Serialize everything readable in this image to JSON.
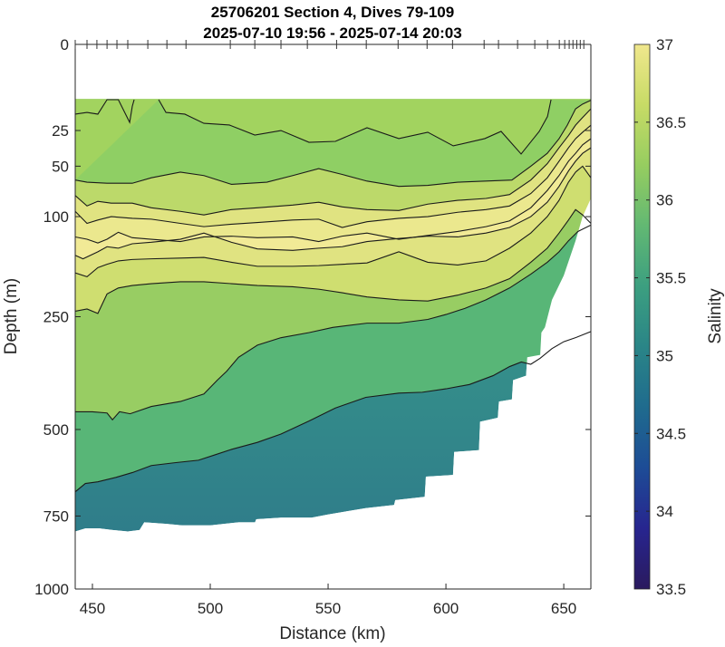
{
  "chart_data": {
    "type": "heatmap",
    "subtype": "filled-contour-section",
    "title": "25706201 Section 4, Dives 79-109",
    "subtitle": "2025-07-10 19:56 - 2025-07-14 20:03",
    "xlabel": "Distance (km)",
    "ylabel": "Depth (m)",
    "xlim": [
      442.7,
      661.5
    ],
    "ylim": [
      0,
      1000
    ],
    "y_scale": "sqrt",
    "y_reversed": true,
    "xticks": [
      450,
      500,
      550,
      600,
      650
    ],
    "xtick_labels": [
      "450",
      "500",
      "550",
      "600",
      "650"
    ],
    "yticks": [
      0,
      25,
      50,
      100,
      250,
      500,
      750,
      1000
    ],
    "ytick_labels": [
      "0",
      "25",
      "50",
      "100",
      "250",
      "500",
      "750",
      "1000"
    ],
    "colorbar": {
      "label": "Salinity",
      "clim": [
        33.5,
        37
      ],
      "ticks": [
        37,
        36.5,
        36,
        35.5,
        35,
        34.5,
        34,
        33.5
      ],
      "tick_labels": [
        "37",
        "36.5",
        "36",
        "35.5",
        "35",
        "34.5",
        "34",
        "33.5"
      ],
      "colormap": [
        "#2a1a5e",
        "#27258f",
        "#1d4c96",
        "#1f6b8e",
        "#2a8587",
        "#3c9f80",
        "#62b873",
        "#96cd60",
        "#c7db66",
        "#f0e78d"
      ]
    },
    "dive_markers_km": [
      442.7,
      447.7,
      451.9,
      456.2,
      460.4,
      465.0,
      473.5,
      481.6,
      489.7,
      508.5,
      518.9,
      530.0,
      541.2,
      553.6,
      566.2,
      579.7,
      592.0,
      602.8,
      616.2,
      622.3,
      630.4,
      637.7,
      643.1,
      648.1,
      650.4,
      652.3,
      653.9,
      655.5,
      657.0,
      658.5
    ],
    "data_top_depth": 10,
    "bottom_boundary": {
      "distance": [
        442.7,
        447.0,
        453.0,
        458.5,
        465.0,
        470.0,
        472.0,
        481.5,
        488.0,
        500.0,
        512.0,
        519.0,
        519.5,
        530.0,
        543.0,
        550.0,
        566.0,
        578.0,
        578.5,
        591.0,
        591.5,
        603.0,
        603.5,
        614.0,
        614.5,
        622.0,
        622.5,
        628.0,
        628.5,
        634.0,
        634.5,
        640.0,
        640.5,
        642.0,
        645.0,
        650.0,
        655.0,
        658.0,
        661.5
      ],
      "depth": [
        800,
        790,
        790,
        795,
        800,
        795,
        770,
        775,
        780,
        780,
        770,
        770,
        760,
        755,
        755,
        745,
        725,
        715,
        700,
        690,
        630,
        625,
        560,
        555,
        480,
        470,
        430,
        425,
        380,
        370,
        330,
        325,
        280,
        270,
        220,
        180,
        130,
        100,
        80
      ]
    },
    "bands": [
      {
        "level": 36.6,
        "color": "#9fd462"
      },
      {
        "level": 36.7,
        "color": "#c2dc69"
      },
      {
        "level": 36.8,
        "color": "#d9e37a"
      },
      {
        "level": 36.9,
        "color": "#e8e888"
      },
      {
        "level": 36.5,
        "color": "#a9d562"
      },
      {
        "level": 36.2,
        "color": "#74c66a"
      },
      {
        "level": 35.8,
        "color": "#47ad7e"
      },
      {
        "level": 35.4,
        "color": "#338f84"
      }
    ],
    "contours": [
      {
        "level": 36.5,
        "distance": [
          442.7,
          447.7,
          452.3,
          456.2,
          461.0,
          465.8,
          466.9,
          467.7
        ],
        "depth": [
          16.4,
          15.6,
          16.4,
          10.3,
          10.3,
          20.5,
          13.0,
          10.3
        ]
      },
      {
        "level": 36.5,
        "distance": [
          478.1,
          481.2,
          489.2,
          497.3,
          508.1,
          518.9,
          530.0,
          541.9,
          553.1,
          566.5,
          580.0,
          592.3,
          603.1,
          616.5,
          623.4,
          631.9,
          639.6,
          643.1,
          644.6
        ],
        "depth": [
          10.3,
          15.6,
          16.4,
          21.0,
          21.9,
          27.7,
          25.0,
          32.3,
          31.7,
          23.4,
          29.9,
          26.0,
          34.7,
          29.9,
          25.5,
          40.5,
          25.5,
          17.5,
          10.3
        ]
      },
      {
        "level": 36.6,
        "distance": [
          442.7,
          447.7,
          456.2,
          466.9,
          475.0,
          487.3,
          497.3,
          509.0,
          524.0,
          535.0,
          546.0,
          556.0,
          566.5,
          580.0,
          592.3,
          605.0,
          617.0,
          628.0,
          636.0,
          643.0,
          648.0,
          651.5,
          655.0,
          658.0,
          661.5
        ],
        "depth": [
          62,
          64,
          65,
          65,
          60,
          55,
          58,
          66,
          64,
          58,
          52,
          57,
          63,
          68,
          67,
          64,
          63,
          62,
          50,
          40,
          30,
          22,
          14,
          12,
          10.5
        ]
      },
      {
        "level": 36.7,
        "distance": [
          442.7,
          447.7,
          452.3,
          458.0,
          466.9,
          475.0,
          487.3,
          497.3,
          509.0,
          520.0,
          535.0,
          546.0,
          556.0,
          566.5,
          580.0,
          592.3,
          605.0,
          617.0,
          627.0,
          636.0,
          643.0,
          648.0,
          652.0,
          655.0,
          658.0,
          661.5
        ],
        "depth": [
          77,
          88,
          83,
          85,
          85,
          90,
          94,
          98,
          92,
          90,
          87,
          84,
          89,
          92,
          93,
          86,
          82,
          80,
          76,
          62,
          48,
          36,
          28,
          22,
          18,
          14
        ]
      },
      {
        "level": 36.8,
        "distance": [
          442.7,
          447.7,
          452.3,
          458.0,
          466.9,
          475.0,
          487.3,
          497.3,
          509.0,
          520.0,
          535.0,
          546.0,
          556.0,
          566.5,
          580.0,
          592.3,
          605.0,
          617.0,
          627.0,
          636.0,
          643.0,
          648.0,
          652.0,
          655.0,
          658.0,
          661.5
        ],
        "depth": [
          94,
          108,
          104,
          100,
          102,
          103,
          108,
          112,
          109,
          107,
          104,
          103,
          113,
          106,
          102,
          100,
          95,
          92,
          88,
          75,
          60,
          46,
          36,
          30,
          26,
          22
        ]
      },
      {
        "level": 36.9,
        "distance": [
          442.7,
          447.7,
          452.3,
          456.2,
          461.0,
          466.9,
          475.0,
          487.3,
          497.3,
          509.0,
          520.0,
          535.0,
          546.0,
          556.0,
          566.5,
          580.0,
          592.3,
          605.0,
          617.0,
          627.0,
          636.0,
          643.0,
          648.0,
          652.0,
          655.0,
          658.0,
          661.5
        ],
        "depth": [
          125,
          128,
          133,
          128,
          119,
          126,
          128,
          131,
          125,
          124,
          126,
          125,
          131,
          124,
          120,
          128,
          123,
          118,
          112,
          105,
          90,
          72,
          58,
          46,
          40,
          34,
          30
        ]
      },
      {
        "level": 36.8,
        "distance": [
          442.7,
          446.0,
          452.3,
          456.2,
          461.0,
          466.9,
          475.0,
          487.3,
          497.3,
          509.0,
          520.0,
          535.0,
          546.0,
          556.0,
          566.5,
          580.0,
          592.3,
          605.0,
          617.0,
          627.0,
          636.0,
          643.0,
          648.0,
          652.0,
          655.0,
          658.0,
          661.5
        ],
        "depth": [
          150,
          155,
          145,
          138,
          140,
          134,
          132,
          128,
          120,
          132,
          141,
          143,
          140,
          138,
          131,
          127,
          124,
          125,
          120,
          113,
          100,
          84,
          68,
          54,
          46,
          40,
          36
        ]
      },
      {
        "level": 36.7,
        "distance": [
          442.7,
          447.7,
          452.3,
          456.2,
          461.0,
          466.9,
          475.0,
          487.3,
          497.3,
          509.0,
          520.0,
          535.0,
          546.0,
          556.0,
          566.5,
          580.0,
          592.3,
          605.0,
          617.0,
          627.0,
          636.0,
          643.0,
          648.0,
          652.0,
          655.0,
          658.0,
          661.5
        ],
        "depth": [
          176,
          182,
          168,
          163,
          158,
          156,
          155,
          154,
          153,
          160,
          166,
          166,
          165,
          163,
          161,
          145,
          160,
          164,
          158,
          140,
          120,
          100,
          82,
          64,
          55,
          50,
          60
        ]
      },
      {
        "level": 36.5,
        "distance": [
          442.7,
          447.7,
          452.3,
          456.2,
          461.0,
          466.9,
          475.0,
          487.3,
          497.3,
          509.0,
          520.0,
          535.0,
          546.0,
          556.0,
          566.5,
          580.0,
          592.3,
          605.0,
          617.0,
          627.0,
          636.0,
          643.0,
          648.0,
          652.0,
          655.0,
          658.0,
          661.5
        ],
        "depth": [
          240,
          236,
          244,
          210,
          200,
          196,
          193,
          190,
          190,
          193,
          196,
          198,
          202,
          208,
          215,
          220,
          222,
          212,
          200,
          185,
          160,
          140,
          120,
          104,
          92,
          98,
          108
        ]
      },
      {
        "level": 36.2,
        "distance": [
          442.7,
          450.0,
          456.2,
          458.5,
          461.5,
          466.0,
          475.0,
          487.3,
          497.3,
          503.0,
          507.0,
          512.0,
          520.0,
          530.0,
          542.0,
          552.0,
          566.5,
          580.0,
          592.3,
          600.0,
          608.0,
          617.0,
          627.0,
          636.0,
          643.0,
          648.0,
          652.0,
          656.0,
          661.5
        ],
        "depth": [
          455,
          455,
          458,
          475,
          455,
          460,
          442,
          430,
          412,
          380,
          360,
          330,
          305,
          290,
          280,
          270,
          262,
          262,
          255,
          246,
          235,
          220,
          200,
          178,
          160,
          145,
          130,
          118,
          110
        ]
      },
      {
        "level": 35.8,
        "distance": [
          442.7,
          447.0,
          452.3,
          460.0,
          467.0,
          475.0,
          485.0,
          495.0,
          502.0,
          509.0,
          520.0,
          530.0,
          542.0,
          553.0,
          566.0,
          580.0,
          590.0,
          600.0,
          610.0,
          620.0,
          627.0,
          632.0,
          636.0,
          640.0,
          645.0,
          650.0,
          655.0,
          661.5
        ],
        "depth": [
          675,
          650,
          645,
          632,
          618,
          598,
          590,
          583,
          568,
          553,
          534,
          512,
          478,
          446,
          420,
          410,
          408,
          400,
          390,
          370,
          350,
          340,
          345,
          332,
          312,
          298,
          290,
          278
        ]
      }
    ]
  }
}
